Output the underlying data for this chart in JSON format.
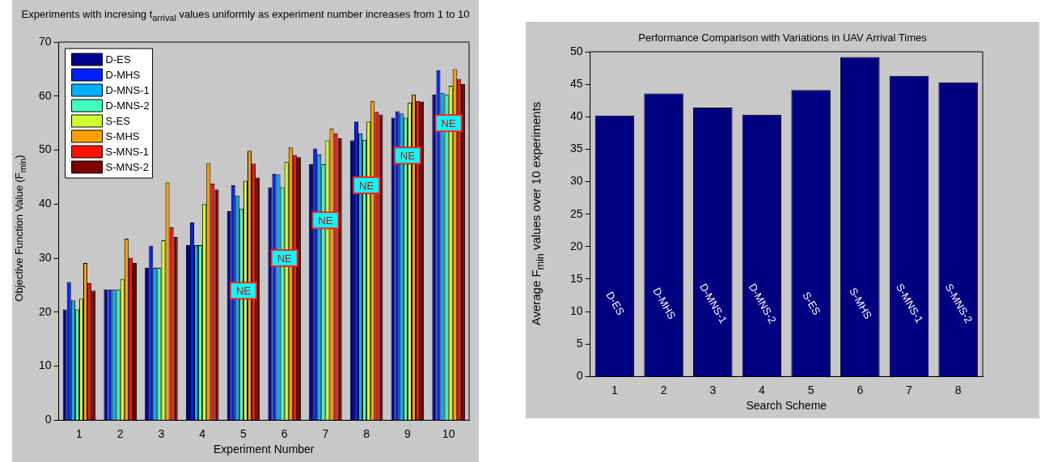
{
  "chart_data": [
    {
      "type": "bar",
      "title": "Experiments with incresing t$_{arrival}$ values uniformly as experiment number increases from 1 to 10",
      "xlabel": "Experiment Number",
      "ylabel": "Objective Function Value (F$_{min}$)",
      "categories": [
        "1",
        "2",
        "3",
        "4",
        "5",
        "6",
        "7",
        "8",
        "9",
        "10"
      ],
      "series": [
        {
          "name": "D-ES",
          "color": "#00008f",
          "values": [
            20.5,
            24.2,
            28.2,
            32.4,
            38.7,
            43.1,
            47.4,
            51.8,
            56.0,
            60.3
          ]
        },
        {
          "name": "D-MHS",
          "color": "#0020ff",
          "values": [
            25.6,
            24.2,
            32.3,
            36.6,
            43.5,
            45.6,
            50.3,
            55.3,
            57.2,
            64.8
          ]
        },
        {
          "name": "D-MNS-1",
          "color": "#00afff",
          "values": [
            22.2,
            24.2,
            28.2,
            32.4,
            41.6,
            45.5,
            49.2,
            53.1,
            56.8,
            60.6
          ]
        },
        {
          "name": "D-MNS-2",
          "color": "#40ffbf",
          "values": [
            20.5,
            24.2,
            28.2,
            32.4,
            39.1,
            43.1,
            47.4,
            51.9,
            56.0,
            60.3
          ]
        },
        {
          "name": "S-ES",
          "color": "#cfff30",
          "values": [
            22.5,
            26.1,
            33.3,
            40.0,
            44.3,
            47.8,
            51.8,
            55.3,
            58.8,
            61.9
          ]
        },
        {
          "name": "S-MHS",
          "color": "#ffa000",
          "values": [
            29.1,
            33.6,
            44.0,
            47.6,
            49.9,
            50.5,
            54.0,
            59.1,
            60.3,
            65.0
          ]
        },
        {
          "name": "S-MNS-1",
          "color": "#ff1000",
          "values": [
            25.4,
            30.1,
            35.7,
            43.8,
            47.5,
            49.1,
            53.1,
            57.1,
            59.1,
            63.2
          ]
        },
        {
          "name": "S-MNS-2",
          "color": "#800000",
          "values": [
            24.0,
            29.1,
            33.9,
            42.7,
            44.9,
            48.7,
            52.2,
            56.6,
            59.0,
            62.2
          ]
        }
      ],
      "ylim": [
        0,
        70
      ],
      "yticks": [
        0,
        10,
        20,
        30,
        40,
        50,
        60,
        70
      ],
      "legend": "top left",
      "annotations": [
        {
          "text": "NE",
          "x": "5",
          "y": 24
        },
        {
          "text": "NE",
          "x": "6",
          "y": 30
        },
        {
          "text": "NE",
          "x": "7",
          "y": 37
        },
        {
          "text": "NE",
          "x": "8",
          "y": 43.5
        },
        {
          "text": "NE",
          "x": "9",
          "y": 49
        },
        {
          "text": "NE",
          "x": "10",
          "y": 55
        }
      ]
    },
    {
      "type": "bar",
      "title": "Performance Comparison with Variations in UAV Arrival Times",
      "xlabel": "Search Scheme",
      "ylabel": "Average F$_{min}$ values over 10 experiments",
      "categories": [
        "1",
        "2",
        "3",
        "4",
        "5",
        "6",
        "7",
        "8"
      ],
      "values": [
        40.2,
        43.6,
        41.4,
        40.3,
        44.1,
        49.2,
        46.3,
        45.3
      ],
      "color": "#000080",
      "ylim": [
        0,
        50
      ],
      "yticks": [
        0,
        5,
        10,
        15,
        20,
        25,
        30,
        35,
        40,
        45,
        50
      ],
      "annotations": [
        "D-ES",
        "D-MHS",
        "D-MNS-1",
        "D-MNS-2",
        "S-ES",
        "S-MHS",
        "S-MNS-1",
        "S-MNS-2"
      ]
    }
  ]
}
